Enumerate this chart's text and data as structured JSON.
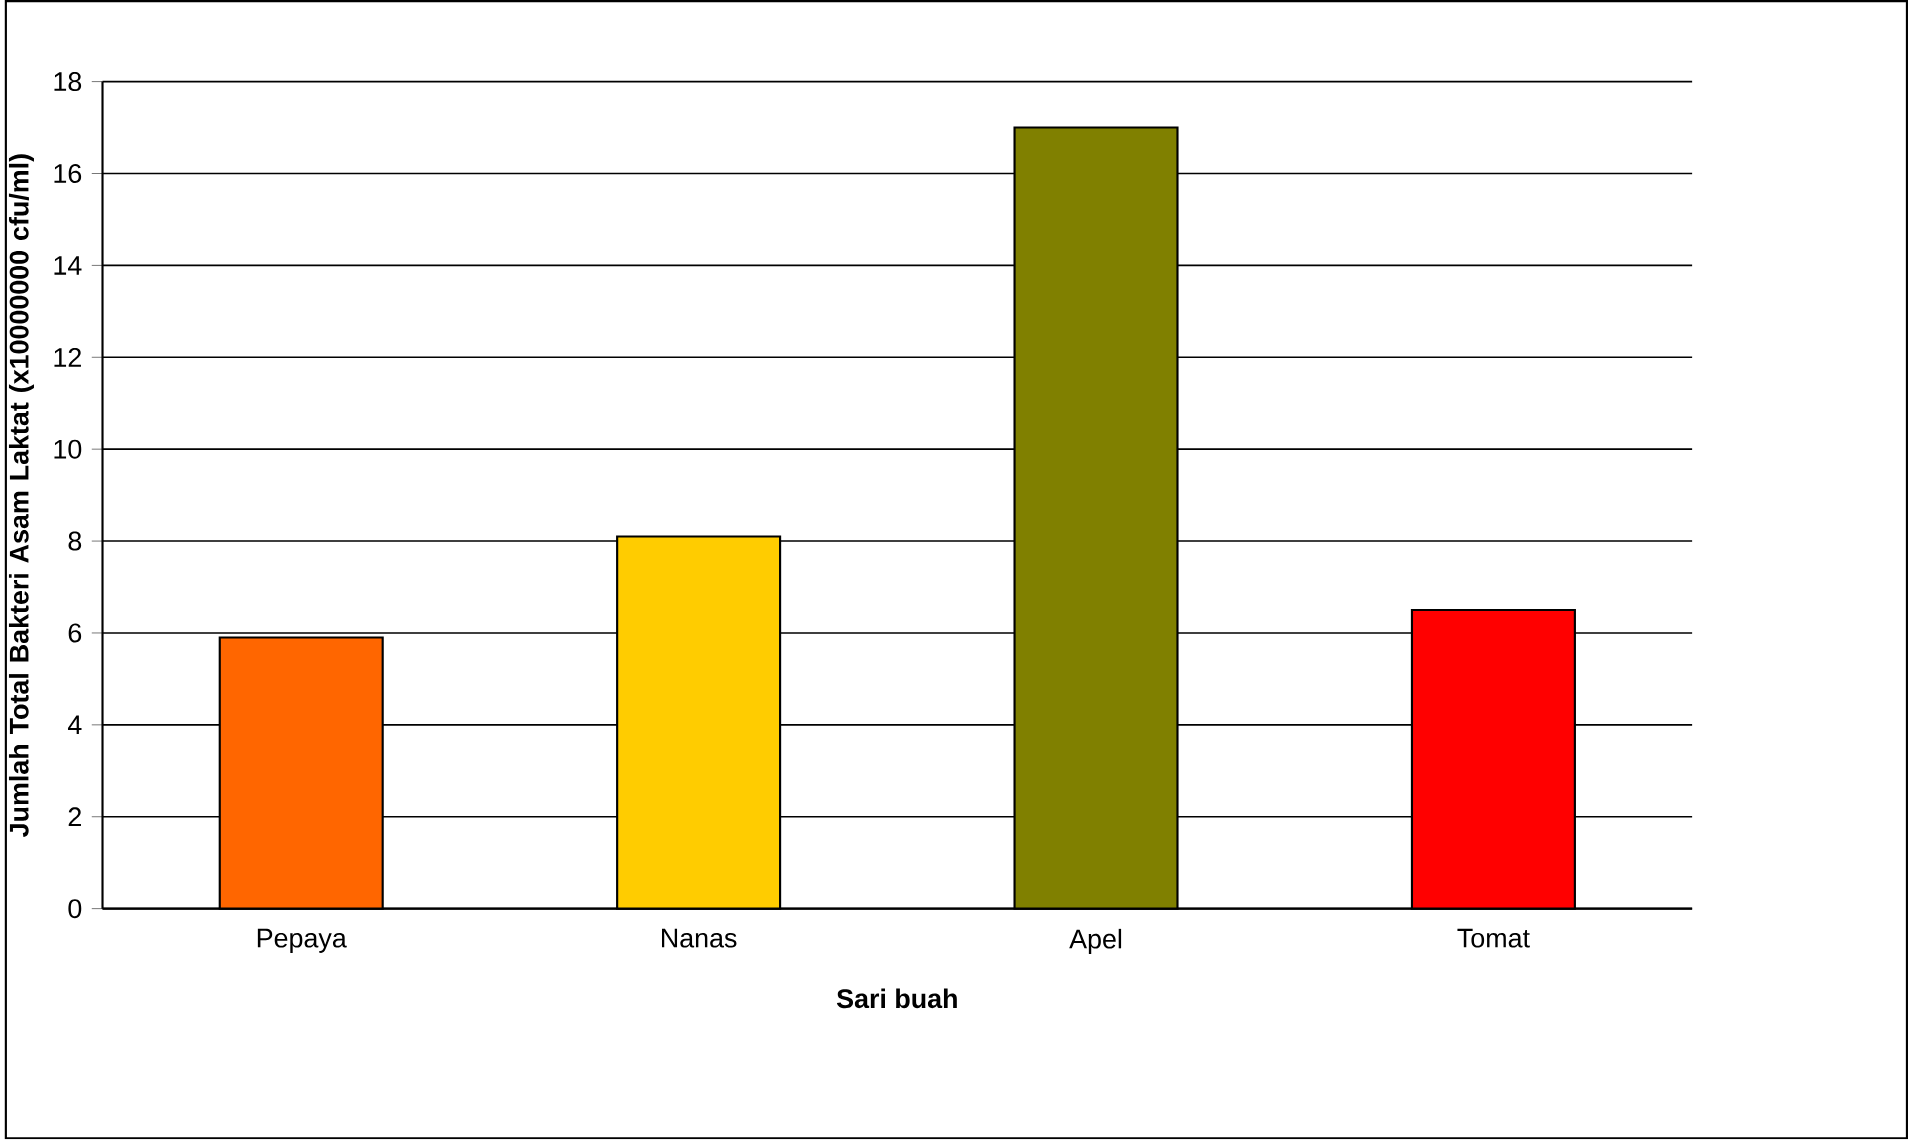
{
  "chart_data": {
    "type": "bar",
    "xlabel": "Sari buah",
    "ylabel": "Jumlah Total Bakteri Asam Laktat (x10000000 cfu/ml)",
    "categories": [
      "Pepaya",
      "Nanas",
      "Apel",
      "Tomat"
    ],
    "values": [
      5.9,
      8.1,
      17,
      6.5
    ],
    "colors": [
      "#ff6600",
      "#ffcc00",
      "#808000",
      "#ff0000"
    ],
    "ylim": [
      0,
      18
    ],
    "yticks": [
      0,
      2,
      4,
      6,
      8,
      10,
      12,
      14,
      16,
      18
    ],
    "grid": "y"
  }
}
